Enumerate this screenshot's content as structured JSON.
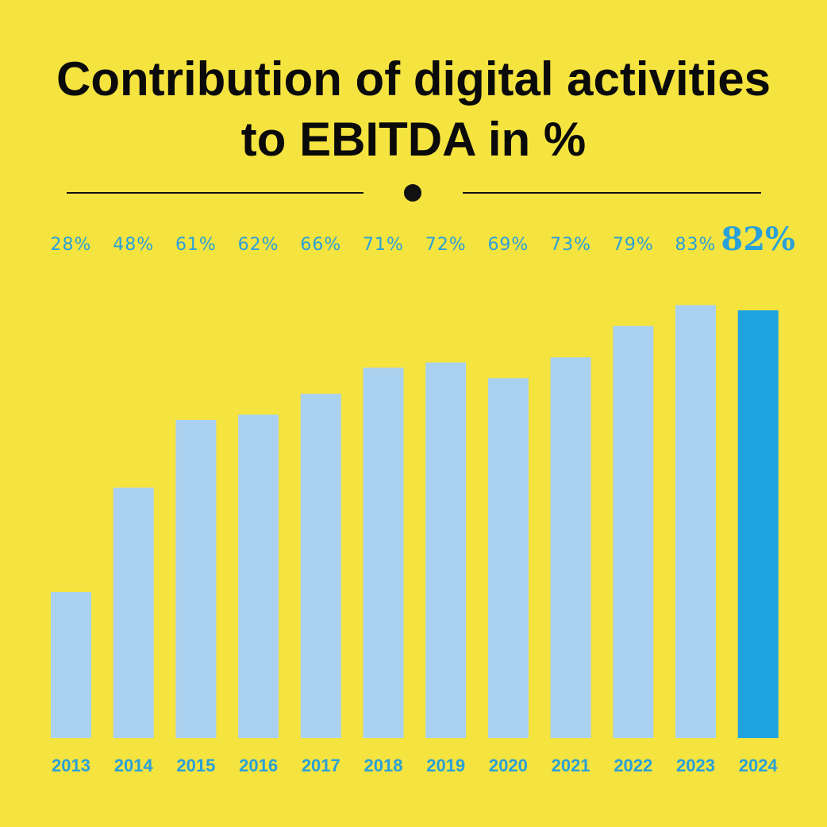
{
  "title_lines": [
    "Contribution of digital activities",
    "to EBITDA in %"
  ],
  "colors": {
    "background": "#f5e33f",
    "bar": "#abd1f0",
    "bar_highlight": "#1fa3e1",
    "label": "#2aa0d8",
    "title": "#0a0a0a"
  },
  "chart_data": {
    "type": "bar",
    "title": "Contribution of digital activities to EBITDA in %",
    "xlabel": "",
    "ylabel": "",
    "categories": [
      "2013",
      "2014",
      "2015",
      "2016",
      "2017",
      "2018",
      "2019",
      "2020",
      "2021",
      "2022",
      "2023",
      "2024"
    ],
    "values": [
      28,
      48,
      61,
      62,
      66,
      71,
      72,
      69,
      73,
      79,
      83,
      82
    ],
    "value_labels": [
      "28%",
      "48%",
      "61%",
      "62%",
      "66%",
      "71%",
      "72%",
      "69%",
      "73%",
      "79%",
      "83%",
      "82%"
    ],
    "highlight_category": "2024",
    "ylim": [
      0,
      89
    ],
    "grid": false,
    "legend": "none"
  }
}
